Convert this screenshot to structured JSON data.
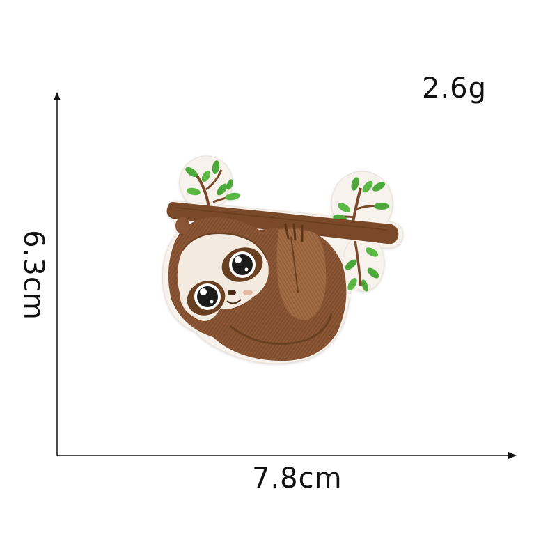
{
  "product": {
    "weight_label": "2.6g",
    "width_label": "7.8cm",
    "height_label": "6.3cm",
    "subject": "embroidered-sloth-patch"
  },
  "colors": {
    "fur_dark": "#6b3f22",
    "fur_mid": "#8a5634",
    "fur_light": "#b07a52",
    "face": "#f3ebe0",
    "branch": "#7a4a2a",
    "leaf": "#4ea83a",
    "border": "#f7f2ec",
    "axis": "#111111"
  }
}
